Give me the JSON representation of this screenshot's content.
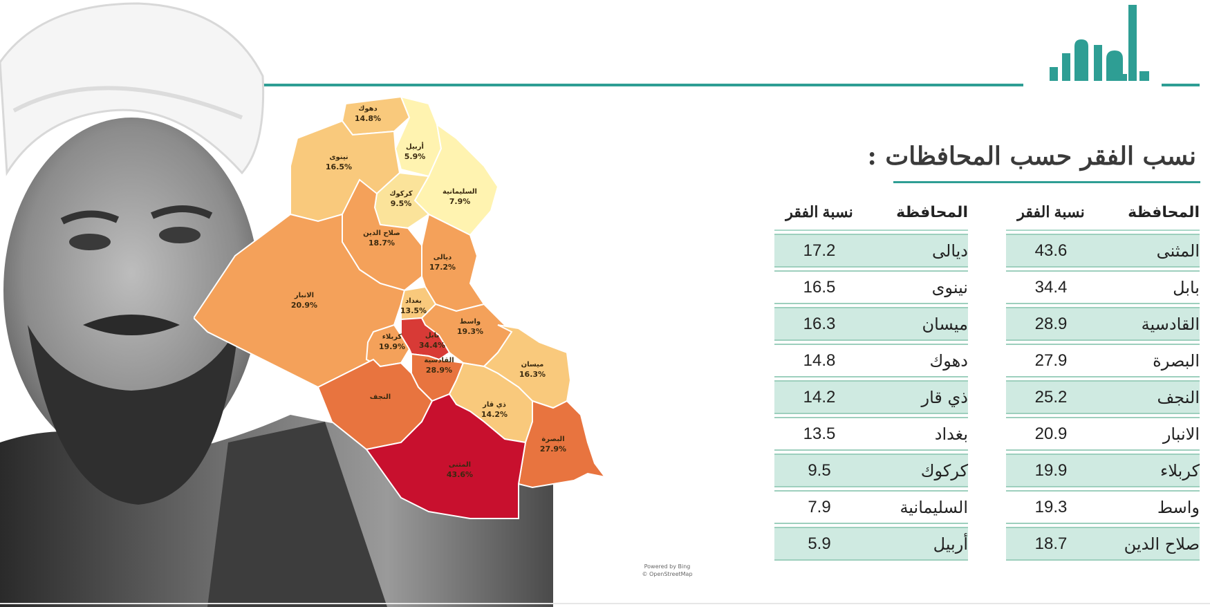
{
  "colors": {
    "accent": "#2e9e94",
    "row_shade": "#cfeae1",
    "row_line": "#9dcfbd",
    "heat": [
      "#fff3b0",
      "#fbe39a",
      "#f9c97c",
      "#f4a15a",
      "#e8743f",
      "#d83a36",
      "#c8102e"
    ]
  },
  "title": "نسب الفقر حسب المحافظات :",
  "attribution": [
    "Powered by Bing",
    "© OpenStreetMap"
  ],
  "tables": [
    {
      "header": {
        "province": "المحافظة",
        "value": "نسبة الفقر"
      },
      "rows": [
        {
          "province": "المثنى",
          "value": "43.6"
        },
        {
          "province": "بابل",
          "value": "34.4"
        },
        {
          "province": "القادسية",
          "value": "28.9"
        },
        {
          "province": "البصرة",
          "value": "27.9"
        },
        {
          "province": "النجف",
          "value": "25.2"
        },
        {
          "province": "الانبار",
          "value": "20.9"
        },
        {
          "province": "كربلاء",
          "value": "19.9"
        },
        {
          "province": "واسط",
          "value": "19.3"
        },
        {
          "province": "صلاح الدين",
          "value": "18.7"
        }
      ]
    },
    {
      "header": {
        "province": "المحافظة",
        "value": "نسبة الفقر"
      },
      "rows": [
        {
          "province": "ديالى",
          "value": "17.2"
        },
        {
          "province": "نينوى",
          "value": "16.5"
        },
        {
          "province": "ميسان",
          "value": "16.3"
        },
        {
          "province": "دهوك",
          "value": "14.8"
        },
        {
          "province": "ذي قار",
          "value": "14.2"
        },
        {
          "province": "بغداد",
          "value": "13.5"
        },
        {
          "province": "كركوك",
          "value": "9.5"
        },
        {
          "province": "السليمانية",
          "value": "7.9"
        },
        {
          "province": "أربيل",
          "value": "5.9"
        }
      ]
    }
  ],
  "chart_data": {
    "type": "choropleth-map",
    "title": "",
    "regions": [
      {
        "name": "دهوك",
        "label": "14.8%",
        "value": 14.8
      },
      {
        "name": "أربيل",
        "label": "5.9%",
        "value": 5.9
      },
      {
        "name": "نينوى",
        "label": "16.5%",
        "value": 16.5
      },
      {
        "name": "السليمانية",
        "label": "7.9%",
        "value": 7.9
      },
      {
        "name": "كركوك",
        "label": "9.5%",
        "value": 9.5
      },
      {
        "name": "صلاح الدين",
        "label": "18.7%",
        "value": 18.7
      },
      {
        "name": "ديالى",
        "label": "17.2%",
        "value": 17.2
      },
      {
        "name": "الانبار",
        "label": "20.9%",
        "value": 20.9
      },
      {
        "name": "بغداد",
        "label": "13.5%",
        "value": 13.5
      },
      {
        "name": "واسط",
        "label": "19.3%",
        "value": 19.3
      },
      {
        "name": "كربلاء",
        "label": "19.9%",
        "value": 19.9
      },
      {
        "name": "بابل",
        "label": "34.4%",
        "value": 34.4
      },
      {
        "name": "القادسية",
        "label": "28.9%",
        "value": 28.9
      },
      {
        "name": "ميسان",
        "label": "16.3%",
        "value": 16.3
      },
      {
        "name": "النجف",
        "label": "",
        "value": 25.2
      },
      {
        "name": "ذي قار",
        "label": "14.2%",
        "value": 14.2
      },
      {
        "name": "البصرة",
        "label": "27.9%",
        "value": 27.9
      },
      {
        "name": "المثنى",
        "label": "43.6%",
        "value": 43.6
      }
    ]
  }
}
